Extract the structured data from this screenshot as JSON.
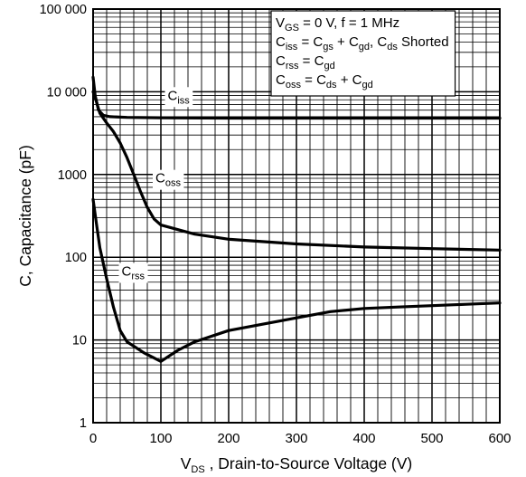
{
  "chart_data": {
    "type": "line",
    "title": "",
    "xlabel": {
      "main": "V",
      "sub": "DS",
      "rest": " , Drain-to-Source Voltage (V)"
    },
    "ylabel": "C, Capacitance (pF)",
    "xlim": [
      0,
      600
    ],
    "ylim": [
      1,
      100000
    ],
    "y_scale": "log",
    "grid": true,
    "x_ticks": [
      0,
      100,
      200,
      300,
      400,
      500,
      600
    ],
    "x_tick_labels": [
      "0",
      "100",
      "200",
      "300",
      "400",
      "500",
      "600"
    ],
    "y_ticks": [
      1,
      10,
      100,
      1000,
      10000,
      100000
    ],
    "y_tick_labels": [
      "1",
      "10",
      "100",
      "1000",
      "10 000",
      "100 000"
    ],
    "conditions": [
      {
        "parts": [
          [
            "V",
            ""
          ],
          [
            "GS",
            "sub"
          ],
          [
            " = 0 V, f = 1 MHz",
            ""
          ]
        ]
      },
      {
        "parts": [
          [
            "C",
            ""
          ],
          [
            "iss",
            "sub"
          ],
          [
            " = C",
            ""
          ],
          [
            "gs",
            "sub"
          ],
          [
            " + C",
            ""
          ],
          [
            "gd",
            "sub"
          ],
          [
            ", C",
            ""
          ],
          [
            "ds",
            "sub"
          ],
          [
            " Shorted",
            ""
          ]
        ]
      },
      {
        "parts": [
          [
            "C",
            ""
          ],
          [
            "rss",
            "sub"
          ],
          [
            " = C",
            ""
          ],
          [
            "gd",
            "sub"
          ]
        ]
      },
      {
        "parts": [
          [
            "C",
            ""
          ],
          [
            "oss",
            "sub"
          ],
          [
            " = C",
            ""
          ],
          [
            "ds",
            "sub"
          ],
          [
            " + C",
            ""
          ],
          [
            "gd",
            "sub"
          ]
        ]
      }
    ],
    "series": [
      {
        "name": "Ciss",
        "label_main": "C",
        "label_sub": "iss",
        "label_at": [
          110,
          8000
        ],
        "points": [
          [
            0,
            15000
          ],
          [
            3,
            9000
          ],
          [
            8,
            6000
          ],
          [
            15,
            5200
          ],
          [
            25,
            5000
          ],
          [
            50,
            4900
          ],
          [
            100,
            4850
          ],
          [
            200,
            4800
          ],
          [
            300,
            4800
          ],
          [
            400,
            4800
          ],
          [
            500,
            4800
          ],
          [
            600,
            4800
          ]
        ]
      },
      {
        "name": "Coss",
        "label_main": "C",
        "label_sub": "oss",
        "label_at": [
          92,
          800
        ],
        "points": [
          [
            0,
            10000
          ],
          [
            5,
            7500
          ],
          [
            10,
            5500
          ],
          [
            20,
            4200
          ],
          [
            30,
            3300
          ],
          [
            40,
            2400
          ],
          [
            50,
            1600
          ],
          [
            60,
            1000
          ],
          [
            70,
            620
          ],
          [
            80,
            400
          ],
          [
            90,
            290
          ],
          [
            100,
            245
          ],
          [
            150,
            190
          ],
          [
            200,
            165
          ],
          [
            300,
            145
          ],
          [
            400,
            133
          ],
          [
            500,
            127
          ],
          [
            600,
            122
          ]
        ]
      },
      {
        "name": "Crss",
        "label_main": "C",
        "label_sub": "rss",
        "label_at": [
          42,
          60
        ],
        "points": [
          [
            0,
            500
          ],
          [
            5,
            250
          ],
          [
            10,
            130
          ],
          [
            20,
            55
          ],
          [
            30,
            25
          ],
          [
            40,
            13
          ],
          [
            50,
            9.5
          ],
          [
            75,
            7
          ],
          [
            100,
            5.5
          ],
          [
            125,
            7.5
          ],
          [
            150,
            9.5
          ],
          [
            200,
            13
          ],
          [
            250,
            15.5
          ],
          [
            300,
            18.5
          ],
          [
            350,
            22
          ],
          [
            400,
            24
          ],
          [
            450,
            25
          ],
          [
            500,
            26
          ],
          [
            550,
            27
          ],
          [
            600,
            28
          ]
        ]
      }
    ]
  }
}
